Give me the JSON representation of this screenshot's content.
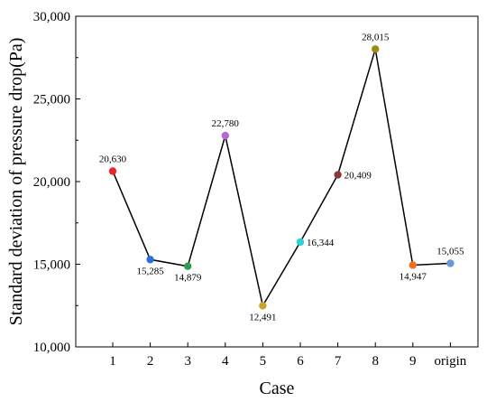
{
  "chart_data": {
    "type": "line",
    "title": "",
    "xlabel": "Case",
    "ylabel": "Standard deviation of pressure drop(Pa)",
    "categories": [
      "1",
      "2",
      "3",
      "4",
      "5",
      "6",
      "7",
      "8",
      "9",
      "origin"
    ],
    "values": [
      20630,
      15285,
      14879,
      22780,
      12491,
      16344,
      20409,
      28015,
      14947,
      15055
    ],
    "value_labels": [
      "20,630",
      "15,285",
      "14,879",
      "22,780",
      "12,491",
      "16,344",
      "20,409",
      "28,015",
      "14,947",
      "15,055"
    ],
    "point_colors": [
      "#e8262a",
      "#2a6fd6",
      "#2e9e4c",
      "#b36ad8",
      "#c9a227",
      "#2bd3d9",
      "#8b3a3a",
      "#9a8c1a",
      "#f07020",
      "#6a9ad6"
    ],
    "line_color": "#000000",
    "ylim": [
      10000,
      30000
    ],
    "yticks": [
      10000,
      15000,
      20000,
      25000,
      30000
    ],
    "ytick_labels": [
      "10,000",
      "15,000",
      "20,000",
      "25,000",
      "30,000"
    ],
    "grid": false,
    "legend": "none"
  }
}
